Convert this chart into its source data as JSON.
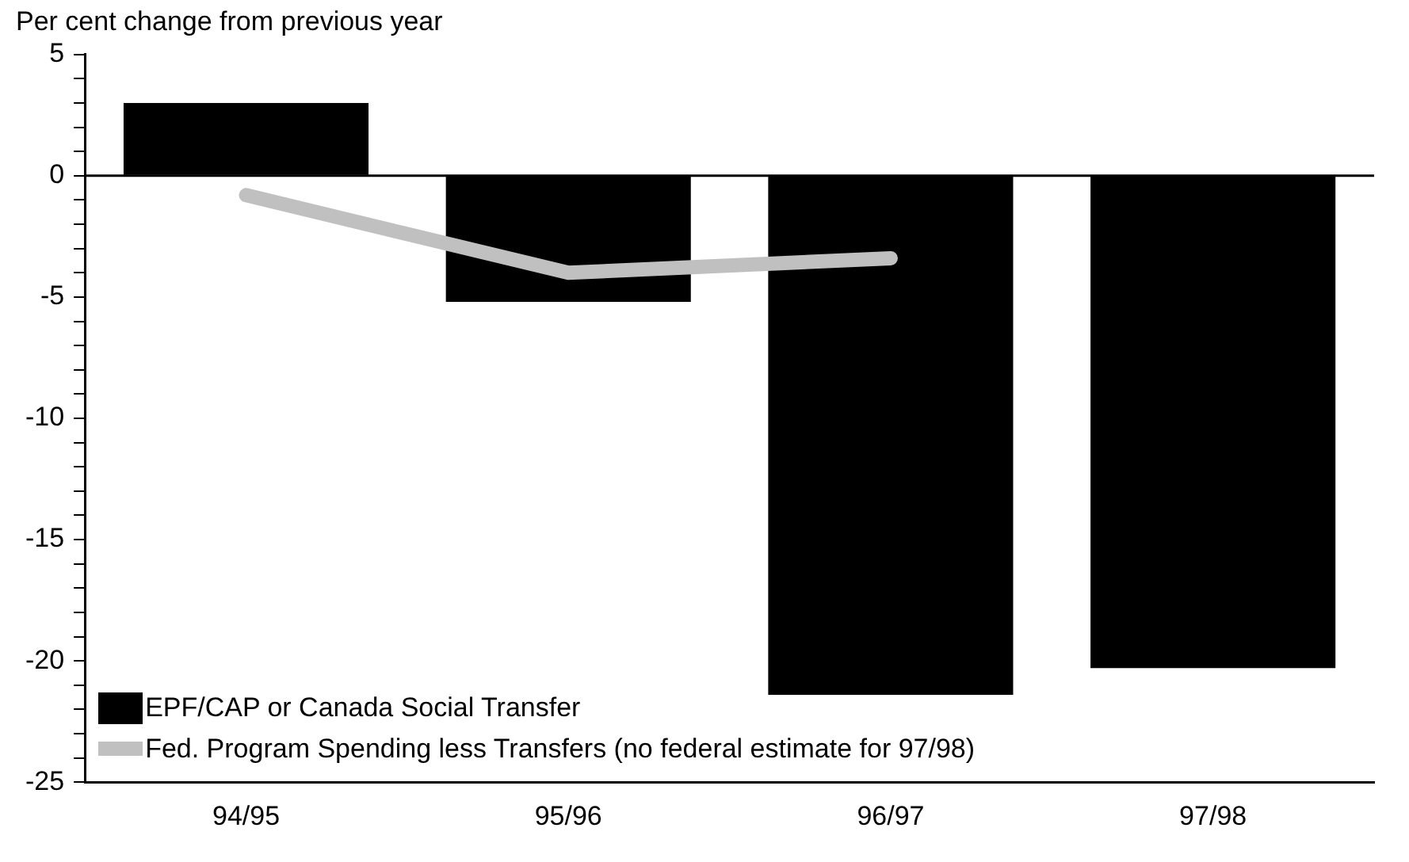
{
  "chart_data": {
    "type": "bar",
    "ylabel": "Per cent change from previous year",
    "categories": [
      "94/95",
      "95/96",
      "96/97",
      "97/98"
    ],
    "series": [
      {
        "name": "EPF/CAP or Canada Social Transfer",
        "color": "#000000",
        "values": [
          3,
          -5.2,
          -21.4,
          -20.3
        ]
      },
      {
        "name": "Fed. Program Spending less Transfers (no federal estimate for 97/98)",
        "type": "line",
        "color": "#c0c0c0",
        "values": [
          -0.8,
          -4,
          -3.4,
          null
        ]
      }
    ],
    "ylim": [
      -25,
      5
    ],
    "yticks": [
      -25,
      {
        "value": -24,
        "label": null
      },
      {
        "value": -23,
        "label": null
      },
      {
        "value": -22,
        "label": null
      },
      {
        "value": -21,
        "label": null
      },
      -20,
      {
        "value": -19,
        "label": null
      },
      {
        "value": -18,
        "label": null
      },
      {
        "value": -17,
        "label": null
      },
      {
        "value": -16,
        "label": null
      },
      -15,
      {
        "value": -14,
        "label": null
      },
      {
        "value": -13,
        "label": null
      },
      {
        "value": -12,
        "label": null
      },
      {
        "value": -11,
        "label": null
      },
      -10,
      {
        "value": -9,
        "label": null
      },
      {
        "value": -8,
        "label": null
      },
      {
        "value": -7,
        "label": null
      },
      {
        "value": -6,
        "label": null
      },
      -5,
      {
        "value": -4,
        "label": null
      },
      {
        "value": -3,
        "label": null
      },
      {
        "value": -2,
        "label": null
      },
      {
        "value": -1,
        "label": null
      },
      0,
      {
        "value": 1,
        "label": null
      },
      {
        "value": 2,
        "label": null
      },
      {
        "value": 3,
        "label": null
      },
      {
        "value": 4,
        "label": null
      },
      5
    ],
    "ref_lines": [
      {
        "axis": "y",
        "value": 0,
        "color": "#000000"
      }
    ],
    "grid": false,
    "legend": "bottom left",
    "marker": "none"
  }
}
